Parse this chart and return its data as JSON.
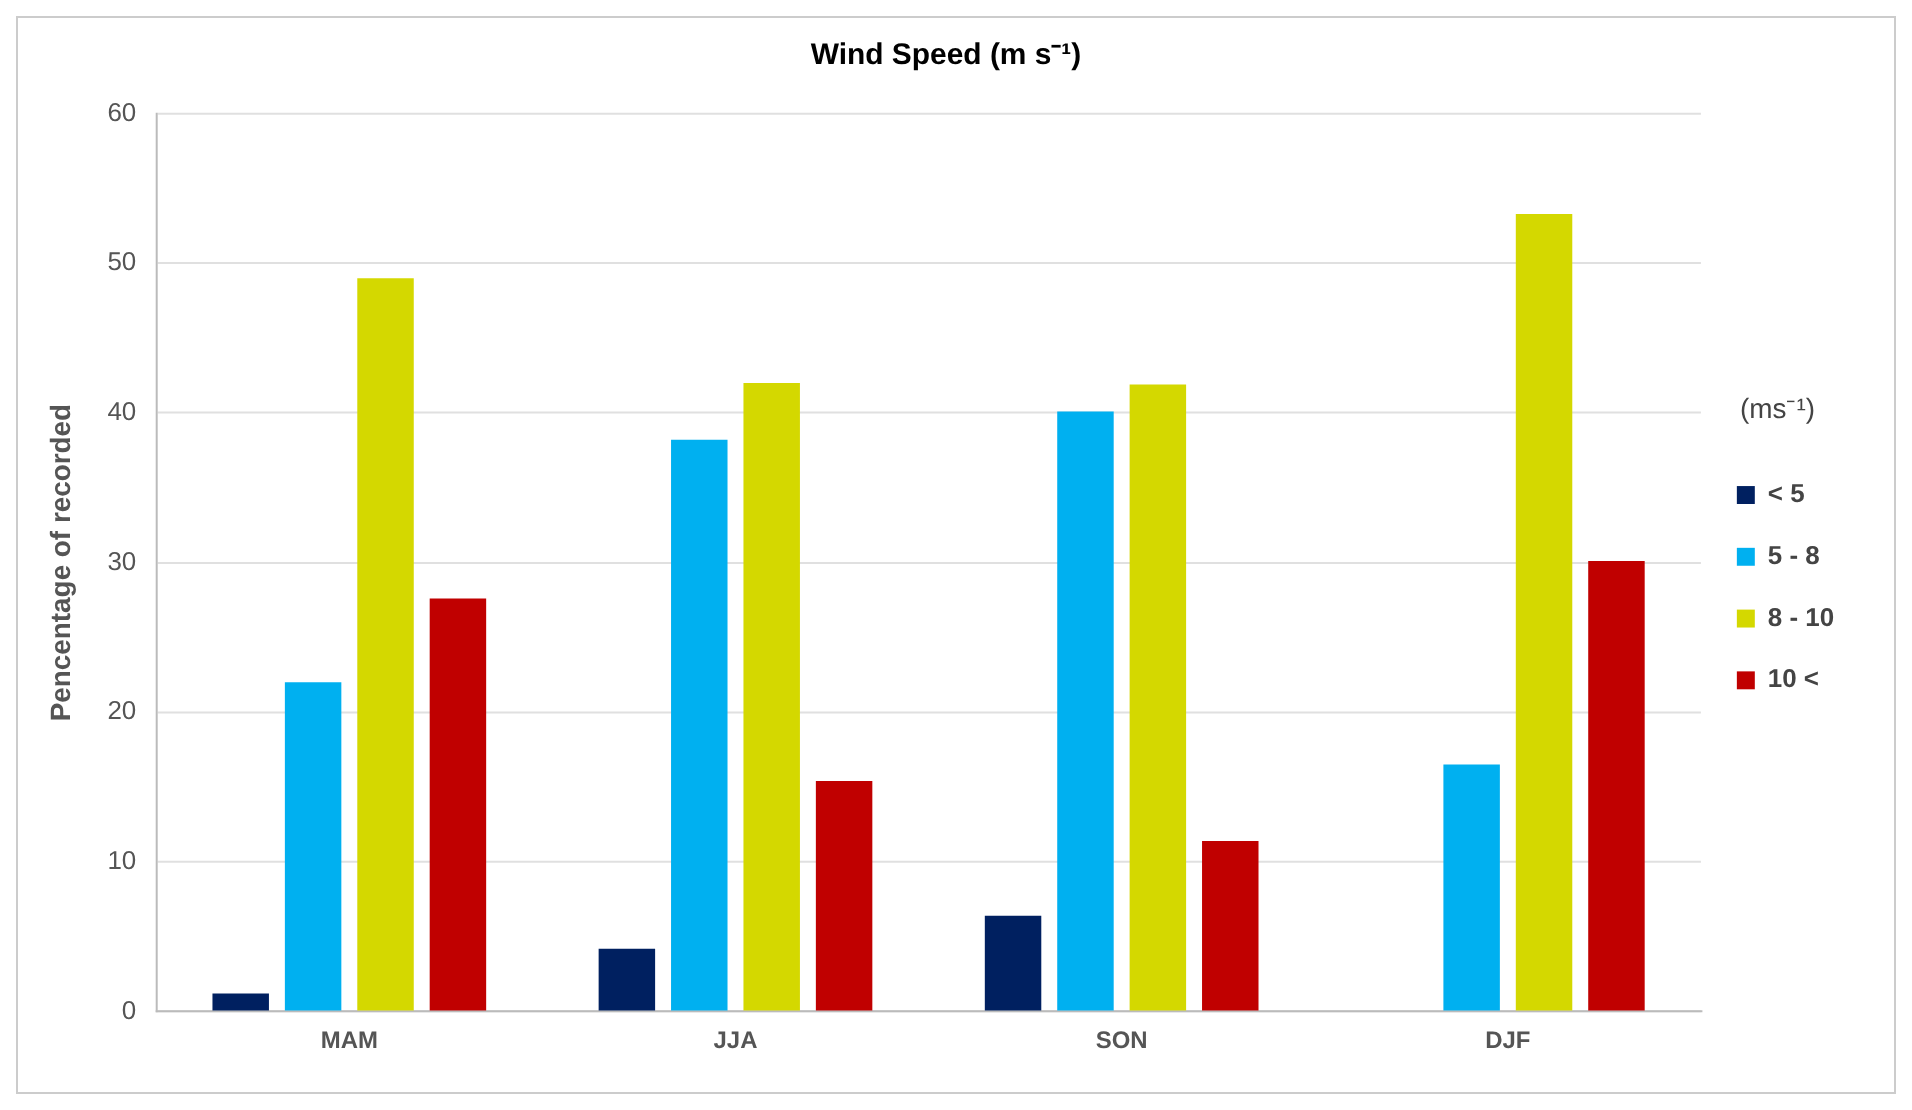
{
  "chart_data": {
    "type": "bar",
    "title": "Wind Speed (m s⁻¹)",
    "ylabel": "Pencentage of recorded",
    "legend_title": "(ms⁻¹)",
    "categories": [
      "MAM",
      "JJA",
      "SON",
      "DJF"
    ],
    "series": [
      {
        "name": "< 5",
        "color": "#002060",
        "values": [
          1.2,
          4.2,
          6.4,
          0
        ]
      },
      {
        "name": "5 - 8",
        "color": "#00b0f0",
        "values": [
          22.0,
          38.2,
          40.1,
          16.5
        ]
      },
      {
        "name": "8 - 10",
        "color": "#d4d800",
        "values": [
          49.0,
          42.0,
          41.9,
          53.3
        ]
      },
      {
        "name": "10 <",
        "color": "#c00000",
        "values": [
          27.6,
          15.4,
          11.4,
          30.1
        ]
      }
    ],
    "ylim": [
      0,
      60
    ],
    "yticks": [
      0,
      10,
      20,
      30,
      40,
      50,
      60
    ],
    "grid": "y",
    "legend": "right"
  }
}
